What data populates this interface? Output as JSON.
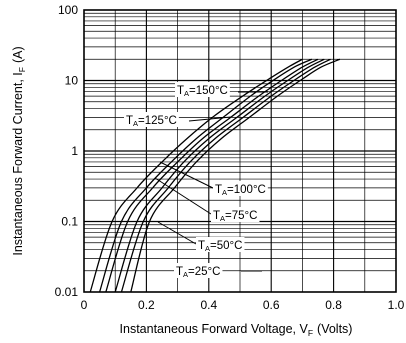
{
  "chart_data": {
    "type": "line",
    "xlabel": "Instantaneous Forward Voltage, V",
    "xlabel_sub": "F",
    "xlabel_unit": "(Volts)",
    "ylabel": "Instantaneous Forward Current, I",
    "ylabel_sub": "F",
    "ylabel_unit": "(A)",
    "xlim": [
      0,
      1.0
    ],
    "ylim": [
      0.01,
      100
    ],
    "y_scale": "log",
    "x_ticks": [
      {
        "value": 0,
        "label": "0"
      },
      {
        "value": 0.2,
        "label": "0.2"
      },
      {
        "value": 0.4,
        "label": "0.4"
      },
      {
        "value": 0.6,
        "label": "0.6"
      },
      {
        "value": 0.8,
        "label": "0.8"
      },
      {
        "value": 1.0,
        "label": "1.0"
      }
    ],
    "y_ticks": [
      {
        "value": 0.01,
        "label": "0.01"
      },
      {
        "value": 0.1,
        "label": "0.1"
      },
      {
        "value": 1,
        "label": "1"
      },
      {
        "value": 10,
        "label": "10"
      },
      {
        "value": 100,
        "label": "100"
      }
    ],
    "grid": true,
    "series": [
      {
        "name": "T_A=150°C",
        "label_main": "T",
        "label_sub": "A",
        "label_rest": "=150°C",
        "x": [
          0.02,
          0.09,
          0.17,
          0.25,
          0.33,
          0.42,
          0.52,
          0.6,
          0.66,
          0.7
        ],
        "y": [
          0.01,
          0.1,
          0.3,
          0.7,
          1.5,
          3.2,
          6.5,
          11,
          16,
          20
        ]
      },
      {
        "name": "T_A=125°C",
        "label_main": "T",
        "label_sub": "A",
        "label_rest": "=125°C",
        "x": [
          0.05,
          0.12,
          0.2,
          0.28,
          0.36,
          0.45,
          0.54,
          0.62,
          0.68,
          0.73
        ],
        "y": [
          0.01,
          0.1,
          0.3,
          0.7,
          1.5,
          3.1,
          6.3,
          11,
          16,
          20
        ]
      },
      {
        "name": "T_A=100°C",
        "label_main": "T",
        "label_sub": "A",
        "label_rest": "=100°C",
        "x": [
          0.07,
          0.14,
          0.22,
          0.3,
          0.38,
          0.47,
          0.56,
          0.64,
          0.7,
          0.75
        ],
        "y": [
          0.01,
          0.1,
          0.3,
          0.7,
          1.5,
          3.0,
          6.0,
          10.5,
          15.5,
          20
        ]
      },
      {
        "name": "T_A=75°C",
        "label_main": "T",
        "label_sub": "A",
        "label_rest": "=75°C",
        "x": [
          0.1,
          0.17,
          0.25,
          0.32,
          0.4,
          0.49,
          0.58,
          0.66,
          0.72,
          0.77
        ],
        "y": [
          0.01,
          0.1,
          0.3,
          0.7,
          1.5,
          3.0,
          6.0,
          10.5,
          15.5,
          20
        ]
      },
      {
        "name": "T_A=50°C",
        "label_main": "T",
        "label_sub": "A",
        "label_rest": "=50°C",
        "x": [
          0.12,
          0.19,
          0.27,
          0.34,
          0.42,
          0.51,
          0.6,
          0.68,
          0.74,
          0.79
        ],
        "y": [
          0.01,
          0.1,
          0.3,
          0.7,
          1.5,
          3.0,
          6.0,
          10.5,
          15.5,
          20
        ]
      },
      {
        "name": "T_A=25°C",
        "label_main": "T",
        "label_sub": "A",
        "label_rest": "=25°C",
        "x": [
          0.15,
          0.21,
          0.29,
          0.36,
          0.44,
          0.53,
          0.62,
          0.7,
          0.76,
          0.82
        ],
        "y": [
          0.01,
          0.1,
          0.3,
          0.7,
          1.5,
          3.0,
          6.0,
          10.5,
          15.5,
          20
        ]
      }
    ],
    "line_color": "#000000",
    "grid_color": "#000000"
  }
}
